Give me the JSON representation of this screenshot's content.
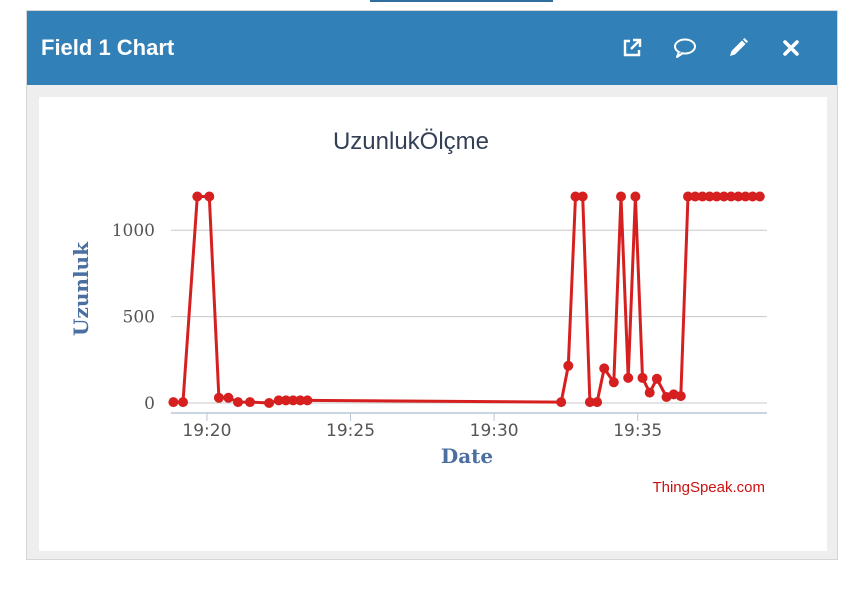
{
  "widget": {
    "title": "Field 1 Chart",
    "icons": [
      "external-link-icon",
      "comment-icon",
      "pencil-icon",
      "close-icon"
    ]
  },
  "colors": {
    "header": "#3180b7",
    "series": "#d62020",
    "axis_title": "#4a6fa0",
    "credit": "#cc1111"
  },
  "chart_data": {
    "type": "line",
    "title": "UzunlukÖlçme",
    "xlabel": "Date",
    "ylabel": "Uzunluk",
    "credit": "ThingSpeak.com",
    "x_axis": "time",
    "xlim": [
      "19:18:45",
      "19:39:30"
    ],
    "ylim": [
      0,
      1250
    ],
    "xticks": [
      "19:20",
      "19:25",
      "19:30",
      "19:35"
    ],
    "yticks": [
      0,
      500,
      1000
    ],
    "grid": true,
    "legend": false,
    "series": [
      {
        "x": [
          "19:18:50",
          "19:19:10",
          "19:19:40",
          "19:20:05",
          "19:20:25",
          "19:20:45",
          "19:21:05",
          "19:21:30",
          "19:22:10",
          "19:22:30",
          "19:22:45",
          "19:23:00",
          "19:23:15",
          "19:23:30",
          "19:32:20",
          "19:32:35",
          "19:32:50",
          "19:33:05",
          "19:33:20",
          "19:33:35",
          "19:33:50",
          "19:34:10",
          "19:34:25",
          "19:34:40",
          "19:34:55",
          "19:35:10",
          "19:35:25",
          "19:35:40",
          "19:36:00",
          "19:36:15",
          "19:36:30",
          "19:36:45",
          "19:37:00",
          "19:37:15",
          "19:37:30",
          "19:37:45",
          "19:38:00",
          "19:38:15",
          "19:38:30",
          "19:38:45",
          "19:39:00",
          "19:39:15"
        ],
        "y": [
          5,
          5,
          1195,
          1195,
          30,
          30,
          5,
          5,
          0,
          15,
          15,
          15,
          15,
          15,
          5,
          215,
          1195,
          1195,
          5,
          5,
          200,
          120,
          1195,
          145,
          1195,
          145,
          60,
          140,
          35,
          50,
          40,
          1195,
          1195,
          1195,
          1195,
          1195,
          1195,
          1195,
          1195,
          1195,
          1195,
          1195
        ]
      }
    ]
  }
}
